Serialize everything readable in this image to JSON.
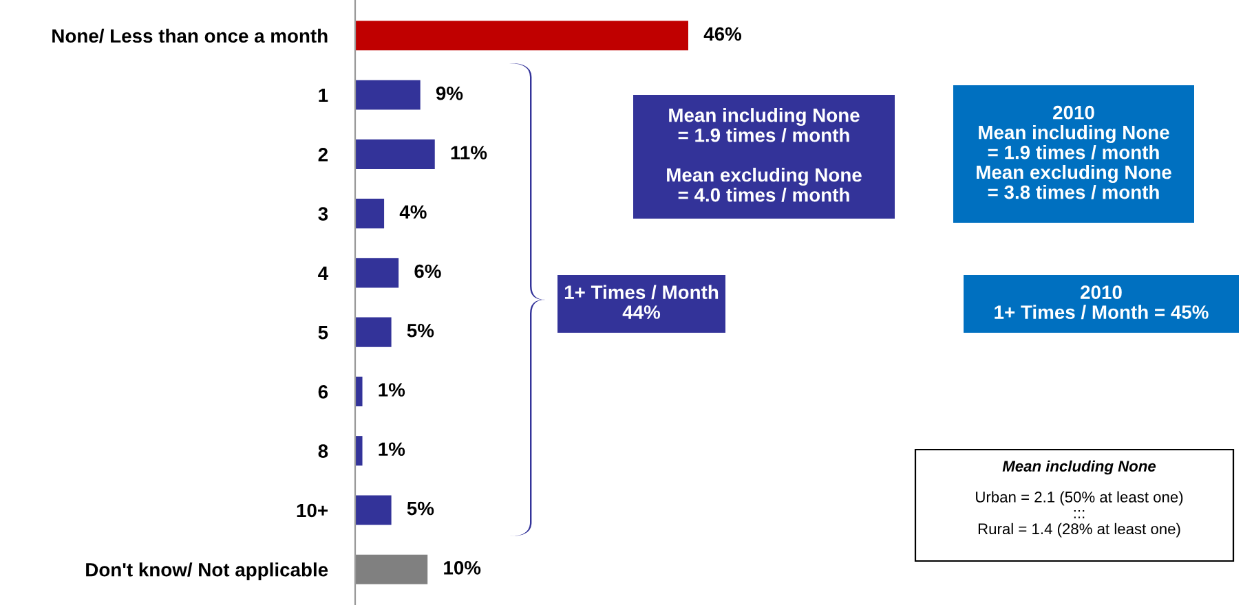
{
  "chart_data": {
    "type": "bar",
    "orientation": "horizontal",
    "categories": [
      "None/ Less than once a month",
      "1",
      "2",
      "3",
      "4",
      "5",
      "6",
      "8",
      "10+",
      "Don't know/ Not applicable"
    ],
    "values": [
      46,
      9,
      11,
      4,
      6,
      5,
      1,
      1,
      5,
      10
    ],
    "colors": [
      "#c00000",
      "#333399",
      "#333399",
      "#333399",
      "#333399",
      "#333399",
      "#333399",
      "#333399",
      "#333399",
      "#808080"
    ],
    "value_labels": [
      "46%",
      "9%",
      "11%",
      "4%",
      "6%",
      "5%",
      "1%",
      "1%",
      "5%",
      "10%"
    ],
    "annotations": [
      "Mean including None\n= 1.9 times / month\n\nMean excluding None\n= 4.0 times / month",
      "2010\nMean including None\n= 1.9 times / month\nMean excluding None\n= 3.8 times / month",
      "1+ Times / Month\n44%",
      "2010\n1+ Times / Month = 45%",
      "Mean including None",
      "Urban = 2.1 (50% at least one)\n:::\nRural = 1.4 (28% at least one)"
    ],
    "grid": false,
    "legend": false
  }
}
